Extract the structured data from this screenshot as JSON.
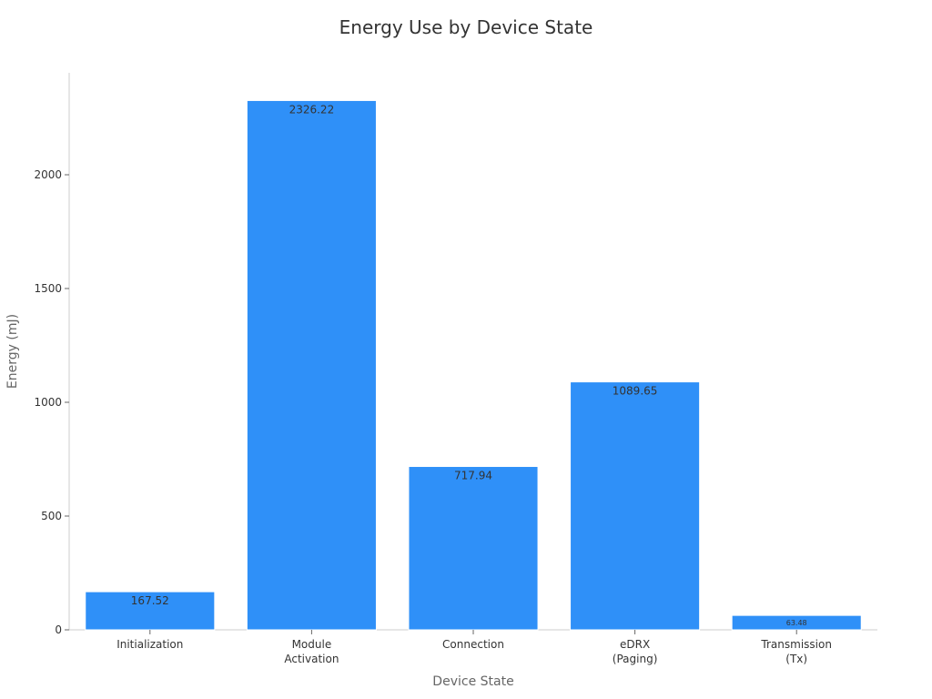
{
  "chart_data": {
    "type": "bar",
    "title": "Energy Use by Device State",
    "xlabel": "Device State",
    "ylabel": "Energy (mJ)",
    "categories": [
      [
        "Initialization"
      ],
      [
        "Module",
        "Activation"
      ],
      [
        "Connection"
      ],
      [
        "eDRX",
        "(Paging)"
      ],
      [
        "Transmission",
        "(Tx)"
      ]
    ],
    "values": [
      167.52,
      2326.22,
      717.94,
      1089.65,
      63.48
    ],
    "value_labels": [
      "167.52",
      "2326.22",
      "717.94",
      "1089.65",
      "63.48"
    ],
    "yticks": [
      0,
      500,
      1000,
      1500,
      2000
    ],
    "ylim": [
      0,
      2450
    ],
    "bar_color": "#2f90f8",
    "grid": false,
    "legend": "none"
  }
}
